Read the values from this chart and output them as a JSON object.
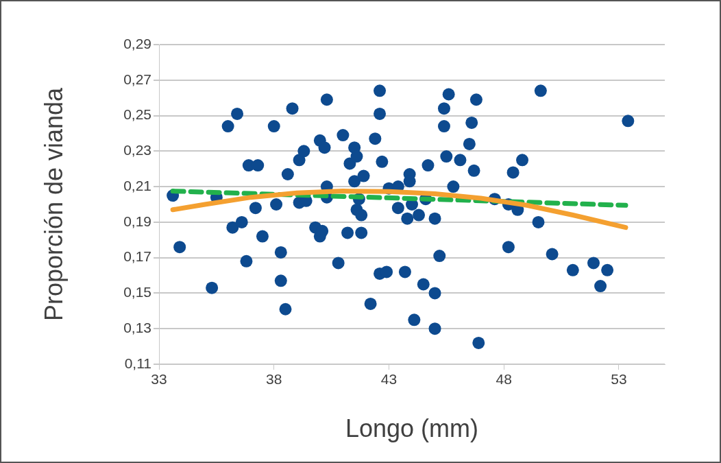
{
  "chart_data": {
    "type": "scatter",
    "xlabel": "Longo (mm)",
    "ylabel": "Proporción de vianda",
    "xlim": [
      33,
      55
    ],
    "xticks": [
      33,
      38,
      43,
      48,
      53
    ],
    "ylim": [
      0.11,
      0.29
    ],
    "yticks": [
      {
        "value": 0.11,
        "label": "0,11"
      },
      {
        "value": 0.13,
        "label": "0,13"
      },
      {
        "value": 0.15,
        "label": "0,15"
      },
      {
        "value": 0.17,
        "label": "0,17"
      },
      {
        "value": 0.19,
        "label": "0,19"
      },
      {
        "value": 0.21,
        "label": "0,21"
      },
      {
        "value": 0.23,
        "label": "0,23"
      },
      {
        "value": 0.25,
        "label": "0,25"
      },
      {
        "value": 0.27,
        "label": "0,27"
      },
      {
        "value": 0.29,
        "label": "0,29"
      }
    ],
    "grid": "y",
    "legend": false,
    "marker": "circle",
    "series": [
      {
        "type": "scatter",
        "color": "#0d4a8f",
        "x": [
          33.6,
          33.9,
          35.3,
          35.5,
          36.0,
          36.4,
          36.2,
          36.6,
          36.8,
          36.9,
          37.3,
          37.2,
          37.5,
          38.0,
          38.1,
          38.3,
          38.3,
          38.5,
          38.6,
          38.8,
          39.1,
          39.3,
          39.1,
          39.4,
          39.8,
          40.0,
          40.0,
          40.1,
          40.2,
          40.3,
          40.3,
          40.3,
          40.8,
          41.0,
          41.2,
          41.3,
          41.5,
          41.6,
          41.5,
          41.7,
          41.6,
          41.8,
          41.8,
          41.9,
          42.2,
          42.4,
          42.6,
          42.6,
          42.7,
          42.6,
          42.9,
          43.0,
          43.4,
          43.4,
          43.7,
          43.8,
          43.9,
          43.9,
          44.0,
          44.1,
          44.3,
          44.5,
          44.6,
          44.7,
          45.0,
          45.0,
          45.0,
          45.2,
          45.4,
          45.4,
          45.5,
          45.6,
          45.8,
          46.1,
          46.5,
          46.6,
          46.7,
          46.8,
          46.9,
          47.6,
          48.2,
          48.2,
          48.6,
          48.4,
          48.8,
          49.5,
          49.6,
          50.1,
          51.0,
          51.9,
          52.2,
          52.5,
          53.4
        ],
        "values": [
          0.205,
          0.176,
          0.153,
          0.204,
          0.244,
          0.251,
          0.187,
          0.19,
          0.168,
          0.222,
          0.222,
          0.198,
          0.182,
          0.244,
          0.2,
          0.173,
          0.157,
          0.141,
          0.217,
          0.254,
          0.225,
          0.23,
          0.201,
          0.202,
          0.187,
          0.236,
          0.182,
          0.185,
          0.232,
          0.259,
          0.21,
          0.204,
          0.167,
          0.239,
          0.184,
          0.223,
          0.232,
          0.227,
          0.213,
          0.203,
          0.197,
          0.194,
          0.184,
          0.216,
          0.144,
          0.237,
          0.264,
          0.251,
          0.224,
          0.161,
          0.162,
          0.209,
          0.21,
          0.198,
          0.162,
          0.192,
          0.217,
          0.213,
          0.2,
          0.135,
          0.194,
          0.155,
          0.203,
          0.222,
          0.13,
          0.15,
          0.192,
          0.171,
          0.254,
          0.244,
          0.227,
          0.262,
          0.21,
          0.225,
          0.234,
          0.246,
          0.219,
          0.259,
          0.122,
          0.203,
          0.176,
          0.2,
          0.197,
          0.218,
          0.225,
          0.19,
          0.264,
          0.172,
          0.163,
          0.167,
          0.154,
          0.163,
          0.247
        ]
      },
      {
        "type": "line",
        "color": "#f4a030",
        "marker": "none",
        "line_style": "solid",
        "x": [
          33.6,
          35,
          37,
          39,
          41,
          43,
          45,
          47,
          49,
          51,
          53.3
        ],
        "values": [
          0.197,
          0.2,
          0.204,
          0.2065,
          0.2075,
          0.2072,
          0.206,
          0.2035,
          0.1995,
          0.194,
          0.187
        ]
      },
      {
        "type": "line",
        "color": "#22b14c",
        "marker": "none",
        "line_style": "dashed",
        "x": [
          33.6,
          53.3
        ],
        "values": [
          0.2075,
          0.1995
        ]
      }
    ]
  }
}
